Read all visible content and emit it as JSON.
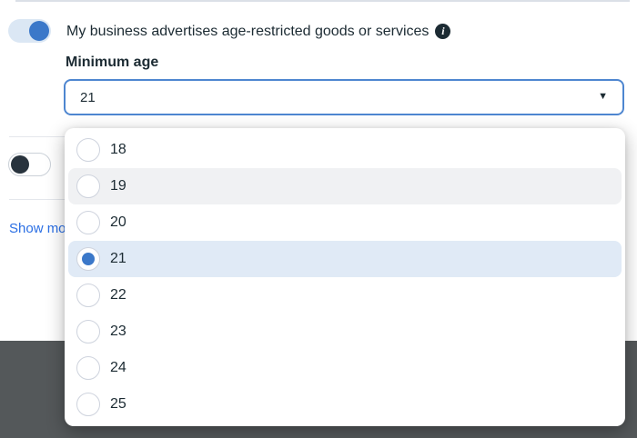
{
  "colors": {
    "accent_blue": "#3b78c9",
    "select_border": "#4e86d0",
    "selected_row_bg": "#e0eaf6",
    "hover_row_bg": "#f0f1f3",
    "link_blue": "#2b6fe4",
    "footer_gray": "#54585a",
    "text_dark": "#1c2b33",
    "toggle_on_track": "#dbe7f4",
    "toggle_off_knob": "#28333d"
  },
  "age_restricted_setting": {
    "label": "My business advertises age-restricted goods or services",
    "toggle_state": "on",
    "info_icon_glyph": "i"
  },
  "minimum_age": {
    "label": "Minimum age",
    "selected_value": "21",
    "caret_icon": "▼"
  },
  "second_setting": {
    "toggle_state": "off"
  },
  "show_more_label": "Show more",
  "dropdown": {
    "options": [
      {
        "label": "18",
        "selected": false,
        "hovered": false
      },
      {
        "label": "19",
        "selected": false,
        "hovered": true
      },
      {
        "label": "20",
        "selected": false,
        "hovered": false
      },
      {
        "label": "21",
        "selected": true,
        "hovered": false
      },
      {
        "label": "22",
        "selected": false,
        "hovered": false
      },
      {
        "label": "23",
        "selected": false,
        "hovered": false
      },
      {
        "label": "24",
        "selected": false,
        "hovered": false
      },
      {
        "label": "25",
        "selected": false,
        "hovered": false
      }
    ]
  }
}
